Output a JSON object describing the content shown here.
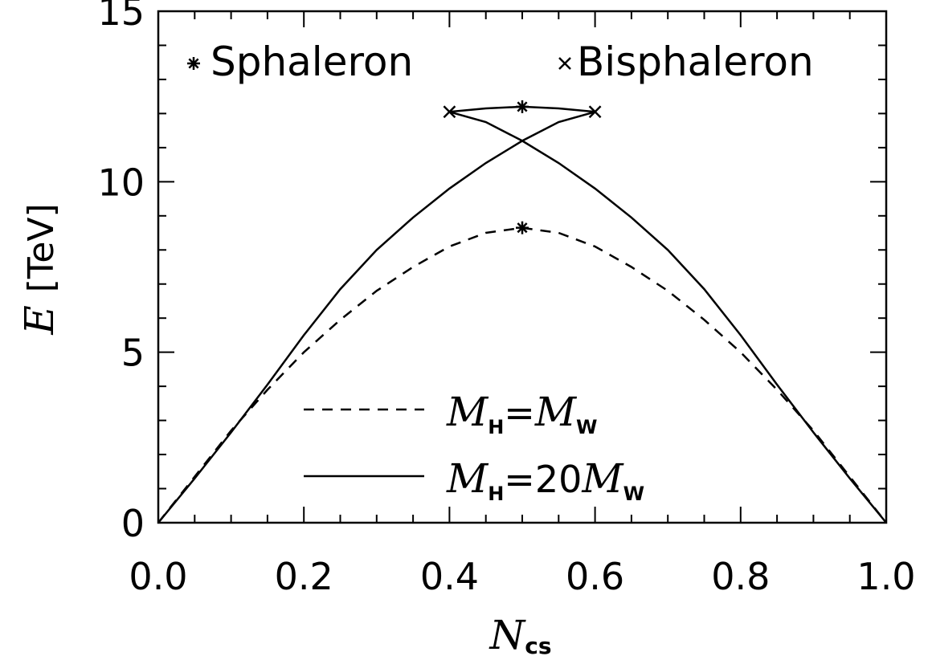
{
  "chart_data": {
    "type": "line",
    "xlabel": {
      "symbol": "N",
      "subscript": "cs"
    },
    "ylabel": {
      "symbol": "E",
      "unit": "[TeV]"
    },
    "xlim": [
      0.0,
      1.0
    ],
    "ylim": [
      0,
      15
    ],
    "x_ticks": [
      "0.0",
      "0.2",
      "0.4",
      "0.6",
      "0.8",
      "1.0"
    ],
    "y_ticks": [
      "0",
      "5",
      "10",
      "15"
    ],
    "marker_legend": [
      {
        "marker": "asterisk",
        "label": "Sphaleron"
      },
      {
        "marker": "cross",
        "label": "Bisphaleron"
      }
    ],
    "series": [
      {
        "name": "M_H=M_W",
        "legend": {
          "m": "M",
          "sub1": "H",
          "eq": "=",
          "coef": "",
          "m2": "M",
          "sub2": "W"
        },
        "style": "dashed",
        "x": [
          0.0,
          0.05,
          0.1,
          0.15,
          0.2,
          0.25,
          0.3,
          0.35,
          0.4,
          0.45,
          0.5,
          0.55,
          0.6,
          0.65,
          0.7,
          0.75,
          0.8,
          0.85,
          0.9,
          0.95,
          1.0
        ],
        "y": [
          0.0,
          1.35,
          2.7,
          3.9,
          5.0,
          5.95,
          6.8,
          7.5,
          8.1,
          8.5,
          8.65,
          8.5,
          8.1,
          7.5,
          6.8,
          5.95,
          5.0,
          3.9,
          2.7,
          1.35,
          0.0
        ]
      },
      {
        "name": "M_H=20M_W",
        "legend": {
          "m": "M",
          "sub1": "H",
          "eq": "=",
          "coef": "20",
          "m2": "M",
          "sub2": "W"
        },
        "style": "solid",
        "branches": [
          {
            "x": [
              0.0,
              0.05,
              0.1,
              0.15,
              0.2,
              0.25,
              0.3,
              0.35,
              0.4,
              0.45,
              0.5,
              0.55,
              0.6
            ],
            "y": [
              0.0,
              1.3,
              2.65,
              4.05,
              5.5,
              6.85,
              8.0,
              8.95,
              9.8,
              10.55,
              11.2,
              11.75,
              12.05
            ]
          },
          {
            "x": [
              0.4,
              0.45,
              0.5,
              0.55,
              0.6,
              0.65,
              0.7,
              0.75,
              0.8,
              0.85,
              0.9,
              0.95,
              1.0
            ],
            "y": [
              12.05,
              11.75,
              11.2,
              10.55,
              9.8,
              8.95,
              8.0,
              6.85,
              5.5,
              4.05,
              2.65,
              1.3,
              0.0
            ]
          },
          {
            "x": [
              0.4,
              0.45,
              0.5,
              0.55,
              0.6
            ],
            "y": [
              12.05,
              12.15,
              12.2,
              12.15,
              12.05
            ]
          }
        ]
      }
    ],
    "sphalerons": [
      {
        "x": 0.5,
        "y": 8.65
      },
      {
        "x": 0.5,
        "y": 12.2
      }
    ],
    "bisphalerons": [
      {
        "x": 0.4,
        "y": 12.05
      },
      {
        "x": 0.6,
        "y": 12.05
      }
    ]
  }
}
